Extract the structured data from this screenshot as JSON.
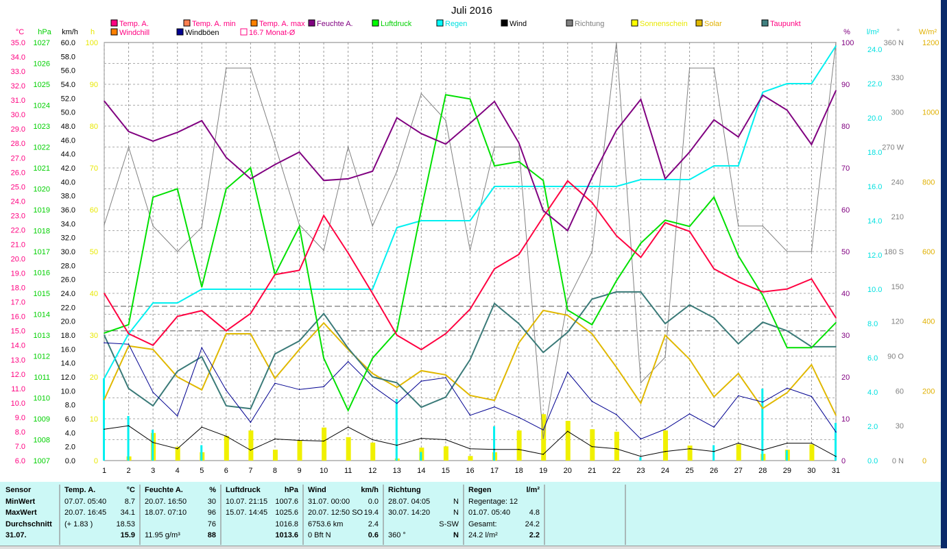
{
  "title": "Juli 2016",
  "colors": {
    "temp": "#ff0040",
    "tempmin": "#ff8040",
    "tempmax": "#ff7a00",
    "humidity": "#800080",
    "pressure": "#00e000",
    "rain": "#00f0f0",
    "wind": "#000000",
    "gust": "#000090",
    "direction": "#808080",
    "sunshine": "#f0f000",
    "solar": "#e0b800",
    "dewpoint": "#3a7a78"
  },
  "legend": [
    {
      "label": "Temp. A.",
      "color": "#ff0080",
      "text": "#ff0080"
    },
    {
      "label": "Temp. A. min",
      "color": "#ff8050",
      "text": "#ff0080"
    },
    {
      "label": "Temp. A. max",
      "color": "#ff8000",
      "text": "#ff0080"
    },
    {
      "label": "Feuchte A.",
      "color": "#800080",
      "text": "#800080"
    },
    {
      "label": "Luftdruck",
      "color": "#00ff00",
      "text": "#00d000"
    },
    {
      "label": "Regen",
      "color": "#00ffff",
      "text": "#00e0e0"
    },
    {
      "label": "Wind",
      "color": "#000000",
      "text": "#000000"
    },
    {
      "label": "Richtung",
      "color": "#808080",
      "text": "#808080"
    },
    {
      "label": "Sonnenschein",
      "color": "#ffff00",
      "text": "#e8e800"
    },
    {
      "label": "Solar",
      "color": "#e0b800",
      "text": "#e0b000"
    },
    {
      "label": "Taupunkt",
      "color": "#408080",
      "text": "#ff0080"
    },
    {
      "label": "Windchill",
      "color": "#ff8000",
      "text": "#ff0080"
    },
    {
      "label": "Windböen",
      "color": "#000090",
      "text": "#000000"
    },
    {
      "label": "16.7 Monat-Ø",
      "color": "none",
      "text": "#ff0080"
    }
  ],
  "axes": {
    "temp": {
      "unit": "°C",
      "min": 6,
      "max": 35,
      "step": 1,
      "dec": 1,
      "color": "#ff0080"
    },
    "pressure": {
      "unit": "hPa",
      "min": 1007,
      "max": 1027,
      "step": 1,
      "dec": 0,
      "color": "#00d000"
    },
    "wind": {
      "unit": "km/h",
      "min": 0,
      "max": 60,
      "step": 2,
      "dec": 1,
      "color": "#000000"
    },
    "sun": {
      "unit": "h",
      "min": 0,
      "max": 100,
      "step": 10,
      "dec": 0,
      "color": "#e8e800"
    },
    "humidity": {
      "unit": "%",
      "min": 0,
      "max": 100,
      "step": 10,
      "dec": 0,
      "color": "#800080"
    },
    "rain": {
      "unit": "l/m²",
      "min": 0,
      "max": 24.4,
      "step": 2,
      "dec": 1,
      "color": "#00e0e0"
    },
    "direction": {
      "unit": "°",
      "min": 0,
      "max": 360,
      "step": 30,
      "dec": 0,
      "color": "#808080",
      "compass": {
        "0": "N",
        "90": "O",
        "180": "S",
        "270": "W",
        "360": "N"
      }
    },
    "solar": {
      "unit": "W/m²",
      "min": 0,
      "max": 1200,
      "step": 200,
      "dec": 0,
      "color": "#e0b000"
    }
  },
  "chart_data": {
    "type": "line",
    "title": "Juli 2016",
    "x": [
      1,
      2,
      3,
      4,
      5,
      6,
      7,
      8,
      9,
      10,
      11,
      12,
      13,
      14,
      15,
      16,
      17,
      18,
      19,
      20,
      21,
      22,
      23,
      24,
      25,
      26,
      27,
      28,
      29,
      30,
      31
    ],
    "reference_lines": {
      "monat_avg_temp": 16.7,
      "second_line_temp": 15.0
    },
    "series": [
      {
        "name": "Richtung",
        "key": "direction",
        "axis": "direction",
        "values": [
          203,
          270,
          202,
          180,
          201,
          338,
          338,
          272,
          203,
          181,
          270,
          202,
          249,
          316,
          293,
          181,
          270,
          270,
          19,
          138,
          180,
          360,
          67,
          89,
          338,
          338,
          202,
          202,
          180,
          180,
          360
        ]
      },
      {
        "name": "Solar",
        "key": "solar",
        "axis": "solar",
        "values": [
          175,
          329,
          319,
          240,
          203,
          364,
          364,
          236,
          319,
          395,
          319,
          250,
          210,
          258,
          246,
          187,
          173,
          338,
          431,
          417,
          364,
          268,
          165,
          360,
          291,
          183,
          250,
          150,
          195,
          275,
          130
        ]
      },
      {
        "name": "Taupunkt",
        "key": "dewpoint",
        "axis": "temp",
        "values": [
          14.7,
          11.0,
          9.8,
          12.2,
          13.2,
          9.8,
          9.6,
          13.4,
          14.3,
          16.2,
          13.8,
          11.8,
          11.4,
          9.7,
          10.4,
          13.0,
          16.9,
          15.5,
          13.5,
          14.9,
          17.2,
          17.7,
          17.7,
          15.5,
          16.8,
          15.9,
          14.1,
          15.6,
          15.0,
          13.9,
          13.9
        ]
      },
      {
        "name": "Windböen",
        "key": "gust",
        "axis": "wind",
        "values": [
          16.9,
          16.7,
          9.8,
          6.4,
          16.2,
          10.1,
          5.5,
          11.1,
          10.2,
          10.6,
          14.2,
          10.7,
          8.2,
          11.4,
          11.9,
          6.5,
          7.7,
          6.2,
          4.4,
          12.7,
          8.5,
          6.6,
          3.1,
          4.5,
          6.7,
          4.8,
          9.3,
          8.4,
          10.4,
          9.2,
          4.1
        ]
      },
      {
        "name": "Wind",
        "key": "wind",
        "axis": "wind",
        "values": [
          4.5,
          5.0,
          2.6,
          1.7,
          4.8,
          3.5,
          1.5,
          3.1,
          2.9,
          2.8,
          4.8,
          3.0,
          2.2,
          3.2,
          3.0,
          1.7,
          1.6,
          1.6,
          0.9,
          4.2,
          2.0,
          1.7,
          0.6,
          1.3,
          1.7,
          1.3,
          2.5,
          1.5,
          2.5,
          2.5,
          0.6
        ]
      },
      {
        "name": "Regen",
        "key": "rain",
        "axis": "rain",
        "values": [
          4.8,
          7.4,
          9.2,
          9.2,
          10.0,
          10.0,
          10.0,
          10.0,
          10.0,
          10.0,
          10.0,
          10.0,
          13.6,
          14.0,
          14.0,
          14.0,
          16.0,
          16.0,
          16.0,
          16.0,
          16.0,
          16.0,
          16.4,
          16.4,
          16.4,
          17.2,
          17.2,
          21.5,
          22.0,
          22.0,
          24.2
        ]
      },
      {
        "name": "Luftdruck",
        "key": "pressure",
        "axis": "pressure",
        "values": [
          1013.1,
          1013.5,
          1019.6,
          1020.0,
          1015.3,
          1020.0,
          1021.0,
          1015.9,
          1018.2,
          1011.9,
          1009.4,
          1011.9,
          1013.2,
          1019.0,
          1024.5,
          1024.3,
          1021.1,
          1021.3,
          1020.4,
          1014.2,
          1013.5,
          1015.6,
          1017.4,
          1018.5,
          1018.2,
          1019.6,
          1016.8,
          1014.9,
          1012.4,
          1012.4,
          1013.6
        ]
      },
      {
        "name": "Temp. A. max",
        "key": "tempmax",
        "axis": "temp",
        "values": [
          17.6,
          14.8,
          14.0,
          16.0,
          16.4,
          15.0,
          16.2,
          18.9,
          19.2,
          23.0,
          20.4,
          17.6,
          14.7,
          13.7,
          14.8,
          16.5,
          19.3,
          20.3,
          22.9,
          25.4,
          23.9,
          21.6,
          20.1,
          22.5,
          21.9,
          19.3,
          18.4,
          17.7,
          17.9,
          18.6,
          15.9
        ]
      },
      {
        "name": "Temp. A.",
        "key": "temp",
        "axis": "temp",
        "values": [
          17.6,
          14.8,
          14.0,
          16.0,
          16.4,
          15.0,
          16.2,
          18.9,
          19.2,
          23.0,
          20.4,
          17.6,
          14.7,
          13.7,
          14.8,
          16.5,
          19.3,
          20.3,
          22.9,
          25.4,
          23.9,
          21.6,
          20.1,
          22.5,
          21.9,
          19.3,
          18.4,
          17.7,
          17.9,
          18.6,
          15.9
        ]
      },
      {
        "name": "Feuchte A.",
        "key": "humidity",
        "axis": "humidity",
        "values": [
          86,
          78.7,
          76.4,
          78.5,
          81.3,
          72.5,
          67.4,
          70.8,
          73.8,
          67,
          67.4,
          69.2,
          82,
          78.2,
          75.7,
          80.7,
          85.9,
          76,
          59.8,
          55,
          67.7,
          79,
          86.4,
          67.4,
          73.8,
          81.5,
          77.4,
          87.4,
          83.8,
          75.6,
          88.5
        ]
      }
    ],
    "bars": [
      {
        "name": "Sonnenschein",
        "key": "sunshine",
        "axis": "sun",
        "values": [
          0,
          1,
          6.6,
          3.3,
          2,
          5.9,
          7.2,
          2.6,
          4.9,
          7.9,
          5.6,
          4.3,
          0.5,
          3.1,
          3.4,
          1.1,
          2,
          7.2,
          11.1,
          9.5,
          7.5,
          6.9,
          0,
          7.2,
          3.6,
          0,
          3.9,
          1.6,
          2.6,
          3.9,
          0
        ]
      },
      {
        "name": "Regen täglich",
        "key": "rain",
        "axis": "rain",
        "values": [
          4.8,
          2.6,
          1.8,
          0,
          0.9,
          0,
          0,
          0,
          0,
          0,
          0,
          0,
          3.6,
          0.5,
          0,
          0,
          2.0,
          0,
          0,
          0,
          0,
          0,
          0.2,
          0,
          0,
          0.9,
          0,
          4.2,
          0.6,
          0,
          2.2
        ]
      }
    ]
  },
  "table": {
    "sensor": {
      "head": "Sensor",
      "rows": [
        "MinWert",
        "MaxWert",
        "Durchschnitt",
        "31.07."
      ]
    },
    "cols": [
      {
        "head": "Temp. A.",
        "unit": "°C",
        "rows": [
          [
            "07.07.  05:40",
            "8.7"
          ],
          [
            "20.07.  16:45",
            "34.1"
          ],
          [
            "(+ 1.83 )",
            "18.53"
          ],
          [
            "",
            "15.9"
          ]
        ]
      },
      {
        "head": "Feuchte A.",
        "unit": "%",
        "rows": [
          [
            "20.07.  16:50",
            "30"
          ],
          [
            "18.07.  07:10",
            "96"
          ],
          [
            "",
            "76"
          ],
          [
            "11.95 g/m³",
            "88"
          ]
        ]
      },
      {
        "head": "Luftdruck",
        "unit": "hPa",
        "rows": [
          [
            "10.07.  21:15",
            "1007.6"
          ],
          [
            "15.07.  14:45",
            "1025.6"
          ],
          [
            "",
            "1016.8"
          ],
          [
            "",
            "1013.6"
          ]
        ]
      },
      {
        "head": "Wind",
        "unit": "km/h",
        "rows": [
          [
            "31.07.  00:00",
            "0.0"
          ],
          [
            "20.07.  12:50 SO",
            "19.4"
          ],
          [
            "6753.6 km",
            "2.4"
          ],
          [
            "0 Bft N",
            "0.6"
          ]
        ]
      },
      {
        "head": "Richtung",
        "unit": "",
        "rows": [
          [
            "28.07.  04:05",
            "N"
          ],
          [
            "30.07.  14:20",
            "N"
          ],
          [
            "",
            "S-SW"
          ],
          [
            "360 °",
            "N"
          ]
        ]
      },
      {
        "head": "Regen",
        "unit": "l/m²",
        "rows": [
          [
            "Regentage: 12",
            ""
          ],
          [
            "01.07.  05:40",
            "4.8"
          ],
          [
            "Gesamt:",
            "24.2"
          ],
          [
            "24.2 l/m²",
            "2.2"
          ]
        ]
      }
    ]
  }
}
